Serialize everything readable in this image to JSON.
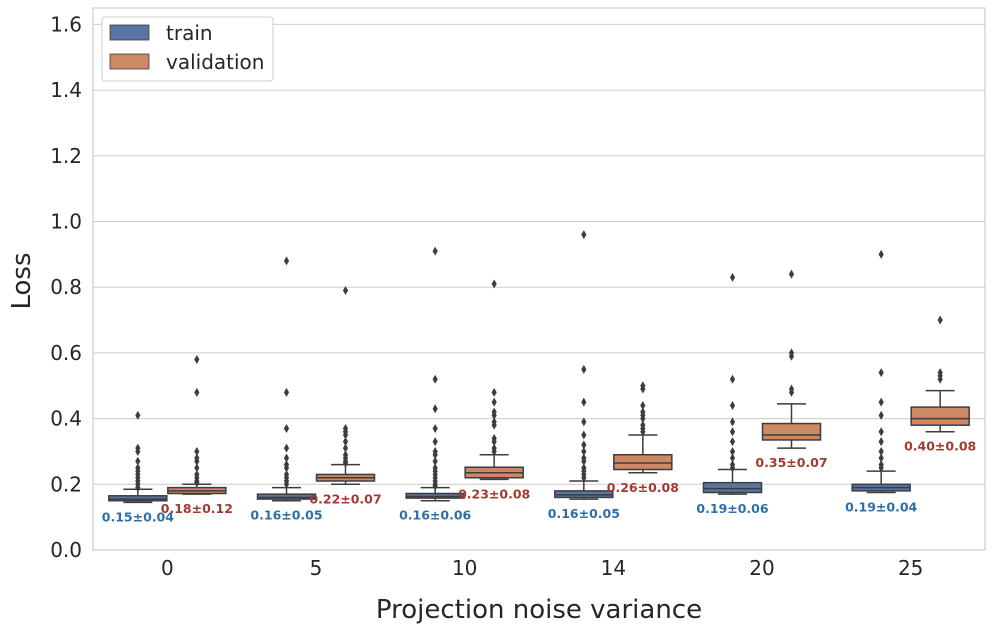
{
  "chart_data": {
    "type": "box",
    "xlabel": "Projection noise variance",
    "ylabel": "Loss",
    "ylim": [
      0,
      1.65
    ],
    "yticks": [
      "0.0",
      "0.2",
      "0.4",
      "0.6",
      "0.8",
      "1.0",
      "1.2",
      "1.4",
      "1.6"
    ],
    "categories": [
      "0",
      "5",
      "10",
      "14",
      "20",
      "25"
    ],
    "legend": {
      "placement": "top-left",
      "entries": [
        "train",
        "validation"
      ]
    },
    "grid": true,
    "colors": {
      "train": "#5875a4",
      "validation": "#cc8963",
      "train_annotation": "#2f6fa8",
      "validation_annotation": "#a03b33",
      "grid": "#cccccc",
      "box_edge": "#3d3d3d"
    },
    "series": [
      {
        "name": "train",
        "boxes": [
          {
            "whislo": 0.145,
            "q1": 0.15,
            "med": 0.155,
            "q3": 0.165,
            "whishi": 0.185,
            "fliers": [
              0.19,
              0.2,
              0.21,
              0.22,
              0.23,
              0.24,
              0.25,
              0.27,
              0.3,
              0.31,
              0.41
            ],
            "annotation": "0.15±0.04"
          },
          {
            "whislo": 0.15,
            "q1": 0.155,
            "med": 0.16,
            "q3": 0.17,
            "whishi": 0.19,
            "fliers": [
              0.2,
              0.21,
              0.22,
              0.23,
              0.25,
              0.26,
              0.28,
              0.31,
              0.37,
              0.48,
              0.88
            ],
            "annotation": "0.16±0.05"
          },
          {
            "whislo": 0.15,
            "q1": 0.158,
            "med": 0.163,
            "q3": 0.172,
            "whishi": 0.19,
            "fliers": [
              0.195,
              0.2,
              0.21,
              0.22,
              0.23,
              0.24,
              0.25,
              0.27,
              0.29,
              0.3,
              0.33,
              0.37,
              0.43,
              0.52,
              0.91
            ],
            "annotation": "0.16±0.06"
          },
          {
            "whislo": 0.155,
            "q1": 0.16,
            "med": 0.168,
            "q3": 0.18,
            "whishi": 0.21,
            "fliers": [
              0.22,
              0.23,
              0.24,
              0.25,
              0.27,
              0.28,
              0.3,
              0.32,
              0.35,
              0.39,
              0.45,
              0.55,
              0.96
            ],
            "annotation": "0.16±0.05"
          },
          {
            "whislo": 0.17,
            "q1": 0.175,
            "med": 0.187,
            "q3": 0.205,
            "whishi": 0.245,
            "fliers": [
              0.25,
              0.26,
              0.28,
              0.3,
              0.33,
              0.36,
              0.39,
              0.44,
              0.52,
              0.83
            ],
            "annotation": "0.19±0.06"
          },
          {
            "whislo": 0.175,
            "q1": 0.18,
            "med": 0.19,
            "q3": 0.2,
            "whishi": 0.24,
            "fliers": [
              0.25,
              0.26,
              0.28,
              0.3,
              0.33,
              0.36,
              0.41,
              0.45,
              0.54,
              0.9
            ],
            "annotation": "0.19±0.04"
          }
        ]
      },
      {
        "name": "validation",
        "boxes": [
          {
            "whislo": 0.17,
            "q1": 0.172,
            "med": 0.18,
            "q3": 0.19,
            "whishi": 0.2,
            "fliers": [
              0.205,
              0.21,
              0.22,
              0.23,
              0.25,
              0.27,
              0.28,
              0.3,
              0.48,
              0.58
            ],
            "annotation": "0.18±0.12"
          },
          {
            "whislo": 0.2,
            "q1": 0.21,
            "med": 0.22,
            "q3": 0.23,
            "whishi": 0.26,
            "fliers": [
              0.265,
              0.27,
              0.28,
              0.29,
              0.31,
              0.33,
              0.35,
              0.36,
              0.37,
              0.79
            ],
            "annotation": "0.22±0.07"
          },
          {
            "whislo": 0.215,
            "q1": 0.22,
            "med": 0.235,
            "q3": 0.252,
            "whishi": 0.29,
            "fliers": [
              0.3,
              0.31,
              0.33,
              0.34,
              0.38,
              0.39,
              0.41,
              0.42,
              0.45,
              0.48,
              0.81
            ],
            "annotation": "0.23±0.08"
          },
          {
            "whislo": 0.235,
            "q1": 0.245,
            "med": 0.265,
            "q3": 0.29,
            "whishi": 0.35,
            "fliers": [
              0.36,
              0.37,
              0.38,
              0.4,
              0.41,
              0.42,
              0.44,
              0.49,
              0.5
            ],
            "annotation": "0.26±0.08"
          },
          {
            "whislo": 0.31,
            "q1": 0.335,
            "med": 0.35,
            "q3": 0.385,
            "whishi": 0.445,
            "fliers": [
              0.48,
              0.49,
              0.59,
              0.6,
              0.84
            ],
            "annotation": "0.35±0.07"
          },
          {
            "whislo": 0.36,
            "q1": 0.38,
            "med": 0.4,
            "q3": 0.435,
            "whishi": 0.485,
            "fliers": [
              0.52,
              0.53,
              0.54,
              0.7
            ],
            "annotation": "0.40±0.08"
          }
        ]
      }
    ]
  }
}
